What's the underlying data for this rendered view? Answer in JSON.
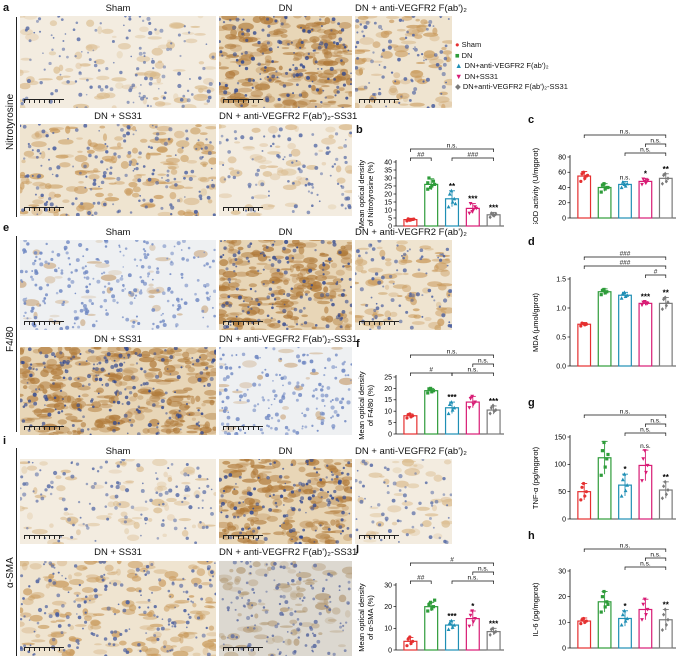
{
  "row_labels": {
    "a": "Nitrotyrosine",
    "e": "F4/80",
    "i": "α-SMA"
  },
  "letters": [
    "a",
    "b",
    "c",
    "d",
    "e",
    "f",
    "g",
    "h",
    "i",
    "j"
  ],
  "image_titles": {
    "sham": "Sham",
    "dn": "DN",
    "dn_anti": "DN + anti-VEGFR2 F(ab')₂",
    "dn_ss31": "DN + SS31",
    "dn_anti_ss31": "DN + anti-VEGFR2 F(ab')₂-SS31"
  },
  "legend": [
    {
      "label": "Sham",
      "color": "#e53030",
      "marker": "circle"
    },
    {
      "label": "DN",
      "color": "#2e9c3a",
      "marker": "square"
    },
    {
      "label": "DN+anti-VEGFR2 F(ab')₂",
      "color": "#1f8fb5",
      "marker": "triangle-up"
    },
    {
      "label": "DN+SS31",
      "color": "#d81b74",
      "marker": "triangle-down"
    },
    {
      "label": "DN+anti-VEGFR2 F(ab')₂-SS31",
      "color": "#7a7a7a",
      "marker": "diamond"
    }
  ],
  "colors": {
    "sham": "#e53030",
    "dn": "#2e9c3a",
    "anti": "#1f8fb5",
    "ss31": "#d81b74",
    "combo": "#7a7a7a"
  },
  "chart_data": [
    {
      "id": "b",
      "type": "bar",
      "ylabel": "Mean optical density\nof Nitrotyrosine (%)",
      "ylim": [
        0,
        40
      ],
      "yticks": [
        0,
        5,
        10,
        15,
        20,
        25,
        30,
        35,
        40
      ],
      "series": [
        {
          "name": "Sham",
          "value": 4,
          "err": 0.8,
          "points": [
            3.2,
            3.8,
            4.1,
            4.5,
            3.6,
            4.3
          ],
          "sig": ""
        },
        {
          "name": "DN",
          "value": 26,
          "err": 3.5,
          "points": [
            23,
            25,
            28,
            30,
            24,
            26,
            27
          ],
          "sig": ""
        },
        {
          "name": "DN+anti-VEGFR2 F(ab')₂",
          "value": 17,
          "err": 5,
          "points": [
            12,
            15,
            17,
            20,
            22,
            14
          ],
          "sig": "**"
        },
        {
          "name": "DN+SS31",
          "value": 11,
          "err": 3,
          "points": [
            8,
            10,
            12,
            14,
            9,
            11
          ],
          "sig": "***"
        },
        {
          "name": "DN+anti-VEGFR2 F(ab')₂-SS31",
          "value": 7,
          "err": 1.5,
          "points": [
            5.5,
            6.5,
            7.5,
            8,
            6.8
          ],
          "sig": "***"
        }
      ],
      "brackets": [
        {
          "from": 0,
          "to": 1,
          "label": "##",
          "level": 1
        },
        {
          "from": 2,
          "to": 4,
          "label": "###",
          "level": 1
        },
        {
          "from": 0,
          "to": 4,
          "label": "n.s.",
          "level": 2
        }
      ]
    },
    {
      "id": "c",
      "type": "bar",
      "ylabel": "SOD activity (U/mgprot)",
      "ylim": [
        0,
        80
      ],
      "yticks": [
        0,
        20,
        40,
        60,
        80
      ],
      "series": [
        {
          "name": "Sham",
          "value": 55,
          "err": 6,
          "points": [
            48,
            52,
            55,
            58,
            60,
            56
          ],
          "sig": ""
        },
        {
          "name": "DN",
          "value": 40,
          "err": 5,
          "points": [
            34,
            38,
            40,
            43,
            45,
            40
          ],
          "sig": ""
        },
        {
          "name": "DN+anti-VEGFR2 F(ab')₂",
          "value": 44,
          "err": 4,
          "points": [
            40,
            42,
            45,
            47,
            44
          ],
          "sig": "n.s."
        },
        {
          "name": "DN+SS31",
          "value": 48,
          "err": 4,
          "points": [
            44,
            46,
            49,
            51,
            48
          ],
          "sig": "*"
        },
        {
          "name": "DN+anti-VEGFR2 F(ab')₂-SS31",
          "value": 52,
          "err": 6,
          "points": [
            45,
            48,
            52,
            56,
            58
          ],
          "sig": "**"
        }
      ],
      "brackets": [
        {
          "from": 2,
          "to": 4,
          "label": "n.s.",
          "level": 1
        },
        {
          "from": 3,
          "to": 4,
          "label": "n.s.",
          "level": 2
        },
        {
          "from": 0,
          "to": 4,
          "label": "n.s.",
          "level": 3
        }
      ]
    },
    {
      "id": "d",
      "type": "bar",
      "ylabel": "MDA (μmol/gprot)",
      "ylim": [
        0,
        1.5
      ],
      "yticks": [
        0.0,
        0.5,
        1.0,
        1.5
      ],
      "series": [
        {
          "name": "Sham",
          "value": 0.72,
          "err": 0.03,
          "points": [
            0.69,
            0.71,
            0.72,
            0.74,
            0.73
          ],
          "sig": ""
        },
        {
          "name": "DN",
          "value": 1.28,
          "err": 0.05,
          "points": [
            1.23,
            1.26,
            1.28,
            1.3,
            1.32
          ],
          "sig": ""
        },
        {
          "name": "DN+anti-VEGFR2 F(ab')₂",
          "value": 1.22,
          "err": 0.05,
          "points": [
            1.17,
            1.2,
            1.22,
            1.25,
            1.27
          ],
          "sig": ""
        },
        {
          "name": "DN+SS31",
          "value": 1.08,
          "err": 0.03,
          "points": [
            1.05,
            1.07,
            1.08,
            1.1,
            1.11
          ],
          "sig": "***"
        },
        {
          "name": "DN+anti-VEGFR2 F(ab')₂-SS31",
          "value": 1.08,
          "err": 0.1,
          "points": [
            0.98,
            1.04,
            1.1,
            1.15,
            1.18
          ],
          "sig": "**"
        }
      ],
      "brackets": [
        {
          "from": 3,
          "to": 4,
          "label": "#",
          "level": 1
        },
        {
          "from": 0,
          "to": 4,
          "label": "###",
          "level": 2
        },
        {
          "from": 0,
          "to": 4,
          "label": "###",
          "level": 3
        }
      ]
    },
    {
      "id": "f",
      "type": "bar",
      "ylabel": "Mean optical density\nof F4/80 (%)",
      "ylim": [
        0,
        25
      ],
      "yticks": [
        0,
        5,
        10,
        15,
        20,
        25
      ],
      "series": [
        {
          "name": "Sham",
          "value": 8,
          "err": 0.8,
          "points": [
            7,
            7.5,
            8,
            8.5,
            8.8
          ],
          "sig": ""
        },
        {
          "name": "DN",
          "value": 19,
          "err": 1,
          "points": [
            18,
            18.5,
            19,
            19.8,
            20
          ],
          "sig": ""
        },
        {
          "name": "DN+anti-VEGFR2 F(ab')₂",
          "value": 11.5,
          "err": 2.5,
          "points": [
            9,
            10.5,
            11.5,
            13,
            14
          ],
          "sig": "***"
        },
        {
          "name": "DN+SS31",
          "value": 14,
          "err": 2.5,
          "points": [
            11.5,
            13,
            14,
            15.5,
            16.5
          ],
          "sig": ""
        },
        {
          "name": "DN+anti-VEGFR2 F(ab')₂-SS31",
          "value": 10.5,
          "err": 1.8,
          "points": [
            9,
            10,
            10.5,
            11.5,
            12.5
          ],
          "sig": "***"
        }
      ],
      "brackets": [
        {
          "from": 0,
          "to": 2,
          "label": "#",
          "level": 1
        },
        {
          "from": 2,
          "to": 4,
          "label": "n.s.",
          "level": 1
        },
        {
          "from": 3,
          "to": 4,
          "label": "n.s.",
          "level": 2
        },
        {
          "from": 0,
          "to": 4,
          "label": "n.s.",
          "level": 3
        }
      ]
    },
    {
      "id": "g",
      "type": "bar",
      "ylabel": "TNF-α (pg/mgprot)",
      "ylim": [
        0,
        150
      ],
      "yticks": [
        0,
        50,
        100,
        150
      ],
      "series": [
        {
          "name": "Sham",
          "value": 50,
          "err": 15,
          "points": [
            35,
            42,
            50,
            58,
            65
          ],
          "sig": ""
        },
        {
          "name": "DN",
          "value": 112,
          "err": 30,
          "points": [
            80,
            95,
            110,
            125,
            140,
            118
          ],
          "sig": ""
        },
        {
          "name": "DN+anti-VEGFR2 F(ab')₂",
          "value": 62,
          "err": 20,
          "points": [
            42,
            52,
            62,
            72,
            82
          ],
          "sig": "*"
        },
        {
          "name": "DN+SS31",
          "value": 98,
          "err": 28,
          "points": [
            70,
            85,
            98,
            110,
            125
          ],
          "sig": "n.s."
        },
        {
          "name": "DN+anti-VEGFR2 F(ab')₂-SS31",
          "value": 53,
          "err": 15,
          "points": [
            38,
            45,
            53,
            60,
            68
          ],
          "sig": "**"
        }
      ],
      "brackets": [
        {
          "from": 2,
          "to": 4,
          "label": "n.s.",
          "level": 1
        },
        {
          "from": 3,
          "to": 4,
          "label": "n.s.",
          "level": 2
        },
        {
          "from": 0,
          "to": 4,
          "label": "n.s.",
          "level": 3
        }
      ]
    },
    {
      "id": "h",
      "type": "bar",
      "ylabel": "IL-6 (pg/mgprot)",
      "ylim": [
        0,
        30
      ],
      "yticks": [
        0,
        10,
        20,
        30
      ],
      "series": [
        {
          "name": "Sham",
          "value": 10.5,
          "err": 1.2,
          "points": [
            9.5,
            10,
            10.5,
            11,
            11.5
          ],
          "sig": ""
        },
        {
          "name": "DN",
          "value": 18,
          "err": 4,
          "points": [
            14,
            16,
            18,
            20,
            22,
            17
          ],
          "sig": ""
        },
        {
          "name": "DN+anti-VEGFR2 F(ab')₂",
          "value": 11.5,
          "err": 3,
          "points": [
            9,
            10.5,
            11.5,
            13,
            14.5
          ],
          "sig": "*"
        },
        {
          "name": "DN+SS31",
          "value": 15,
          "err": 4,
          "points": [
            11,
            13,
            15,
            17,
            19
          ],
          "sig": ""
        },
        {
          "name": "DN+anti-VEGFR2 F(ab')₂-SS31",
          "value": 11,
          "err": 4,
          "points": [
            7,
            9,
            11,
            13,
            15
          ],
          "sig": "**"
        }
      ],
      "brackets": [
        {
          "from": 2,
          "to": 4,
          "label": "n.s.",
          "level": 1
        },
        {
          "from": 3,
          "to": 4,
          "label": "n.s.",
          "level": 2
        },
        {
          "from": 0,
          "to": 4,
          "label": "n.s.",
          "level": 3
        }
      ]
    },
    {
      "id": "j",
      "type": "bar",
      "ylabel": "Mean optical density\nof α-SMA (%)",
      "ylim": [
        0,
        30
      ],
      "yticks": [
        0,
        10,
        20,
        30
      ],
      "series": [
        {
          "name": "Sham",
          "value": 4,
          "err": 1.8,
          "points": [
            2,
            3,
            4,
            5,
            6
          ],
          "sig": ""
        },
        {
          "name": "DN",
          "value": 20,
          "err": 2,
          "points": [
            18,
            19,
            20,
            21,
            22,
            23
          ],
          "sig": ""
        },
        {
          "name": "DN+anti-VEGFR2 F(ab')₂",
          "value": 11.5,
          "err": 2,
          "points": [
            9.5,
            10.5,
            11.5,
            12.5,
            13.5
          ],
          "sig": "***"
        },
        {
          "name": "DN+SS31",
          "value": 14.5,
          "err": 3.5,
          "points": [
            11,
            13,
            14.5,
            16,
            18
          ],
          "sig": "*"
        },
        {
          "name": "DN+anti-VEGFR2 F(ab')₂-SS31",
          "value": 8.5,
          "err": 1.5,
          "points": [
            7,
            8,
            8.5,
            9.5,
            10
          ],
          "sig": "***"
        }
      ],
      "brackets": [
        {
          "from": 0,
          "to": 1,
          "label": "##",
          "level": 1
        },
        {
          "from": 2,
          "to": 4,
          "label": "n.s.",
          "level": 1
        },
        {
          "from": 3,
          "to": 4,
          "label": "n.s.",
          "level": 2
        },
        {
          "from": 0,
          "to": 4,
          "label": "#",
          "level": 3
        }
      ]
    }
  ]
}
